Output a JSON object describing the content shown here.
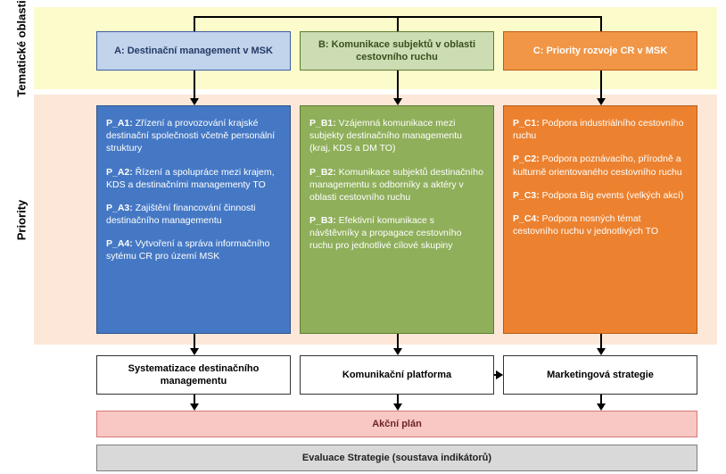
{
  "labels": {
    "thematic": "Tematické oblasti",
    "priorities": "Priority"
  },
  "colors": {
    "band_top": "#fcfbcc",
    "band_mid": "#fce7d8",
    "headA_bg": "#c2d3ec",
    "headA_border": "#3a5ea0",
    "headB_bg": "#ccdcb3",
    "headB_border": "#5e7c2e",
    "headC_bg": "#f19646",
    "headC_border": "#c45b13",
    "prioA_bg": "#4578c4",
    "prioB_bg": "#8faf5a",
    "prioC_bg": "#ec8230",
    "akcni_bg": "#f9c7c4",
    "akcni_border": "#d57976",
    "eval_bg": "#d9d9d9",
    "eval_border": "#7d7d7d"
  },
  "headers": {
    "A": "A: Destinační management v MSK",
    "B": "B: Komunikace subjektů v oblasti cestovního ruchu",
    "C": "C: Priority rozvoje CR v MSK"
  },
  "priorities": {
    "A": [
      {
        "code": "P_A1:",
        "text": " Zřízení a provozování krajské destinační společnosti včetně personální struktury"
      },
      {
        "code": "P_A2:",
        "text": " Řízení a spolupráce mezi krajem, KDS a destinačními managementy TO"
      },
      {
        "code": "P_A3:",
        "text": " Zajištění financování činnosti destinačního managementu"
      },
      {
        "code": "P_A4:",
        "text": " Vytvoření a správa informačního sytému CR pro území MSK"
      }
    ],
    "B": [
      {
        "code": "P_B1:",
        "text": " Vzájemná komunikace mezi subjekty destinačního managementu (kraj, KDS a DM TO)"
      },
      {
        "code": "P_B2:",
        "text": " Komunikace subjektů destinačního managementu s odborníky a aktéry v oblasti cestovního ruchu"
      },
      {
        "code": "P_B3:",
        "text": " Efektivní komunikace s návštěvníky a propagace cestovního ruchu pro jednotlivé cílové skupiny"
      }
    ],
    "C": [
      {
        "code": "P_C1:",
        "text": " Podpora industriálního cestovního ruchu"
      },
      {
        "code": "P_C2:",
        "text": " Podpora poznávacího, přírodně a kulturně orientovaného cestovního ruchu"
      },
      {
        "code": "P_C3:",
        "text": " Podpora Big events (velkých akcí)"
      },
      {
        "code": "P_C4:",
        "text": " Podpora nosných témat cestovního ruchu v jednotlivých TO"
      }
    ]
  },
  "outputs": {
    "A": "Systematizace destinačního managementu",
    "B": "Komunikační platforma",
    "C": "Marketingová strategie"
  },
  "bottom": {
    "akcni": "Akční plán",
    "eval": "Evaluace Strategie (soustava indikátorů)"
  }
}
